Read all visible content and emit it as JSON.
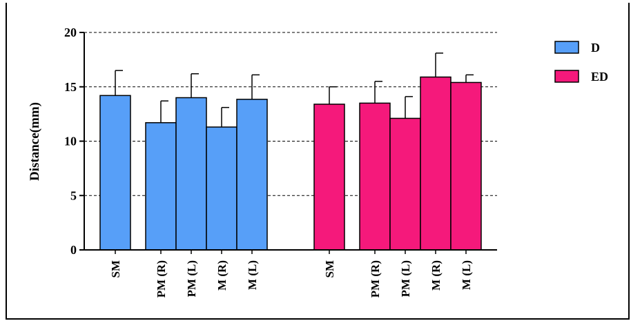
{
  "chart_data": {
    "type": "bar",
    "ylabel": "Distance(mm)",
    "xlabel": "",
    "ylim": [
      0,
      20
    ],
    "yticks": [
      0,
      5,
      10,
      15,
      20
    ],
    "grid": "horizontal dashed",
    "legend_position": "top-right",
    "groups": [
      {
        "name": "D",
        "color": "#579ff8",
        "categories": [
          "SM",
          "PM (R)",
          "PM (L)",
          "M (R)",
          "M (L)"
        ],
        "values": [
          14.2,
          11.7,
          14.0,
          11.3,
          13.85
        ],
        "errors": [
          2.3,
          2.0,
          2.2,
          1.8,
          2.25
        ]
      },
      {
        "name": "ED",
        "color": "#f5197b",
        "categories": [
          "SM",
          "PM (R)",
          "PM (L)",
          "M (R)",
          "M (L)"
        ],
        "values": [
          13.4,
          13.5,
          12.1,
          15.9,
          15.4
        ],
        "errors": [
          1.6,
          2.0,
          2.0,
          2.2,
          0.7
        ]
      }
    ]
  }
}
